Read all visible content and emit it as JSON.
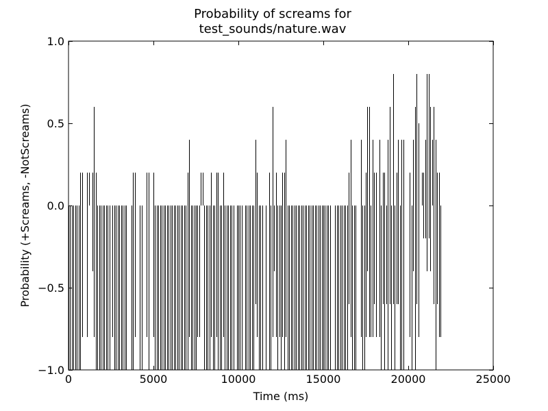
{
  "chart_data": {
    "type": "bar",
    "title_lines": [
      "Probability of screams for",
      "test_sounds/nature.wav"
    ],
    "xlabel": "Time (ms)",
    "ylabel": "Probability (+Screams, -NotScreams)",
    "xlim": [
      0,
      25000
    ],
    "ylim": [
      -1.0,
      1.0
    ],
    "x_ticks": [
      0,
      5000,
      10000,
      15000,
      20000,
      25000
    ],
    "x_tick_labels": [
      "0",
      "5000",
      "10000",
      "15000",
      "20000",
      "25000"
    ],
    "y_ticks": [
      1.0,
      0.5,
      0.0,
      -0.5,
      -1.0
    ],
    "y_tick_labels": [
      "1.0",
      "0.5",
      "0.0",
      "−0.5",
      "−1.0"
    ],
    "grid": false,
    "bar_interval_ms": 100,
    "bars_x_range": [
      0,
      22000
    ],
    "series": [
      {
        "base_value": -1.0,
        "positive_points": [
          {
            "x": 700,
            "y": 0.2
          },
          {
            "x": 800,
            "y": 0.2
          },
          {
            "x": 1100,
            "y": 0.2
          },
          {
            "x": 1200,
            "y": 0.2
          },
          {
            "x": 1400,
            "y": 0.2
          },
          {
            "x": 1500,
            "y": 0.6
          },
          {
            "x": 1600,
            "y": 0.2
          },
          {
            "x": 3800,
            "y": 0.2
          },
          {
            "x": 3900,
            "y": 0.2
          },
          {
            "x": 4600,
            "y": 0.2
          },
          {
            "x": 4700,
            "y": 0.2
          },
          {
            "x": 5000,
            "y": 0.2
          },
          {
            "x": 7000,
            "y": 0.2
          },
          {
            "x": 7100,
            "y": 0.4
          },
          {
            "x": 7800,
            "y": 0.2
          },
          {
            "x": 7900,
            "y": 0.2
          },
          {
            "x": 8400,
            "y": 0.2
          },
          {
            "x": 8700,
            "y": 0.2
          },
          {
            "x": 8800,
            "y": 0.2
          },
          {
            "x": 9100,
            "y": 0.2
          },
          {
            "x": 11000,
            "y": 0.4
          },
          {
            "x": 11100,
            "y": 0.2
          },
          {
            "x": 11800,
            "y": 0.2
          },
          {
            "x": 12000,
            "y": 0.6
          },
          {
            "x": 12200,
            "y": 0.2
          },
          {
            "x": 12600,
            "y": 0.2
          },
          {
            "x": 12700,
            "y": 0.2
          },
          {
            "x": 12800,
            "y": 0.4
          },
          {
            "x": 16500,
            "y": 0.2
          },
          {
            "x": 16600,
            "y": 0.4
          },
          {
            "x": 17200,
            "y": 0.4
          },
          {
            "x": 17500,
            "y": 0.2
          },
          {
            "x": 17600,
            "y": 0.6
          },
          {
            "x": 17700,
            "y": 0.6
          },
          {
            "x": 17900,
            "y": 0.4
          },
          {
            "x": 18000,
            "y": 0.2
          },
          {
            "x": 18100,
            "y": 0.2
          },
          {
            "x": 18300,
            "y": 0.4
          },
          {
            "x": 18500,
            "y": 0.2
          },
          {
            "x": 18600,
            "y": 0.2
          },
          {
            "x": 18800,
            "y": 0.4
          },
          {
            "x": 18900,
            "y": 0.6
          },
          {
            "x": 19100,
            "y": 0.8
          },
          {
            "x": 19300,
            "y": 0.2
          },
          {
            "x": 19400,
            "y": 0.4
          },
          {
            "x": 19600,
            "y": 0.4
          },
          {
            "x": 19700,
            "y": 0.4
          },
          {
            "x": 20100,
            "y": 0.2
          },
          {
            "x": 20300,
            "y": 0.4
          },
          {
            "x": 20400,
            "y": 0.6
          },
          {
            "x": 20500,
            "y": 0.8
          },
          {
            "x": 20600,
            "y": 0.5
          },
          {
            "x": 20800,
            "y": 0.2
          },
          {
            "x": 20900,
            "y": 0.2
          },
          {
            "x": 21000,
            "y": 0.4
          },
          {
            "x": 21100,
            "y": 0.8
          },
          {
            "x": 21200,
            "y": 0.8
          },
          {
            "x": 21300,
            "y": 0.6
          },
          {
            "x": 21400,
            "y": 0.4
          },
          {
            "x": 21500,
            "y": 0.6
          },
          {
            "x": 21600,
            "y": 0.4
          },
          {
            "x": 21700,
            "y": 0.2
          },
          {
            "x": 21800,
            "y": 0.2
          }
        ],
        "negative_points": [
          {
            "x": 800,
            "y": -0.8
          },
          {
            "x": 1100,
            "y": -0.8
          },
          {
            "x": 1400,
            "y": -0.4
          },
          {
            "x": 1500,
            "y": -0.8
          },
          {
            "x": 2600,
            "y": -0.8
          },
          {
            "x": 3900,
            "y": -0.8
          },
          {
            "x": 4600,
            "y": -0.8
          },
          {
            "x": 5000,
            "y": -0.8
          },
          {
            "x": 7100,
            "y": -0.8
          },
          {
            "x": 7600,
            "y": -0.8
          },
          {
            "x": 7700,
            "y": -0.8
          },
          {
            "x": 8400,
            "y": -0.8
          },
          {
            "x": 8700,
            "y": -0.8
          },
          {
            "x": 9100,
            "y": -0.8
          },
          {
            "x": 11000,
            "y": -0.6
          },
          {
            "x": 11100,
            "y": -0.8
          },
          {
            "x": 12000,
            "y": -0.8
          },
          {
            "x": 12100,
            "y": -0.4
          },
          {
            "x": 12200,
            "y": -0.8
          },
          {
            "x": 12400,
            "y": -0.8
          },
          {
            "x": 12600,
            "y": -0.8
          },
          {
            "x": 12800,
            "y": -0.8
          },
          {
            "x": 16500,
            "y": -0.6
          },
          {
            "x": 16600,
            "y": -0.8
          },
          {
            "x": 17200,
            "y": -0.8
          },
          {
            "x": 17500,
            "y": -0.8
          },
          {
            "x": 17600,
            "y": -0.4
          },
          {
            "x": 17700,
            "y": -0.8
          },
          {
            "x": 17800,
            "y": -0.8
          },
          {
            "x": 17900,
            "y": -0.8
          },
          {
            "x": 18000,
            "y": -0.6
          },
          {
            "x": 18100,
            "y": -0.8
          },
          {
            "x": 18300,
            "y": -0.8
          },
          {
            "x": 18500,
            "y": -0.6
          },
          {
            "x": 18700,
            "y": -0.6
          },
          {
            "x": 18900,
            "y": -0.6
          },
          {
            "x": 19100,
            "y": -0.6
          },
          {
            "x": 19300,
            "y": -0.6
          },
          {
            "x": 19400,
            "y": -0.6
          },
          {
            "x": 20100,
            "y": -0.8
          },
          {
            "x": 20300,
            "y": -0.4
          },
          {
            "x": 20500,
            "y": -0.6
          },
          {
            "x": 20600,
            "y": -0.8
          },
          {
            "x": 20900,
            "y": -0.2
          },
          {
            "x": 21000,
            "y": -0.2
          },
          {
            "x": 21100,
            "y": -0.4
          },
          {
            "x": 21200,
            "y": -0.2
          },
          {
            "x": 21300,
            "y": -0.4
          },
          {
            "x": 21500,
            "y": -0.6
          },
          {
            "x": 21700,
            "y": -0.6
          },
          {
            "x": 21800,
            "y": -0.8
          },
          {
            "x": 21900,
            "y": -0.8
          }
        ],
        "missing_negative_x": [
          900,
          1000,
          1200,
          1300,
          2500,
          3500,
          3600,
          4000,
          4100,
          4400,
          4500,
          4800,
          4900,
          7800,
          7900,
          9800,
          10300,
          11500,
          11700,
          15500,
          15600,
          17000,
          17100,
          18200,
          19800,
          19900,
          20000,
          20700,
          20800,
          21400,
          22000
        ]
      }
    ]
  }
}
